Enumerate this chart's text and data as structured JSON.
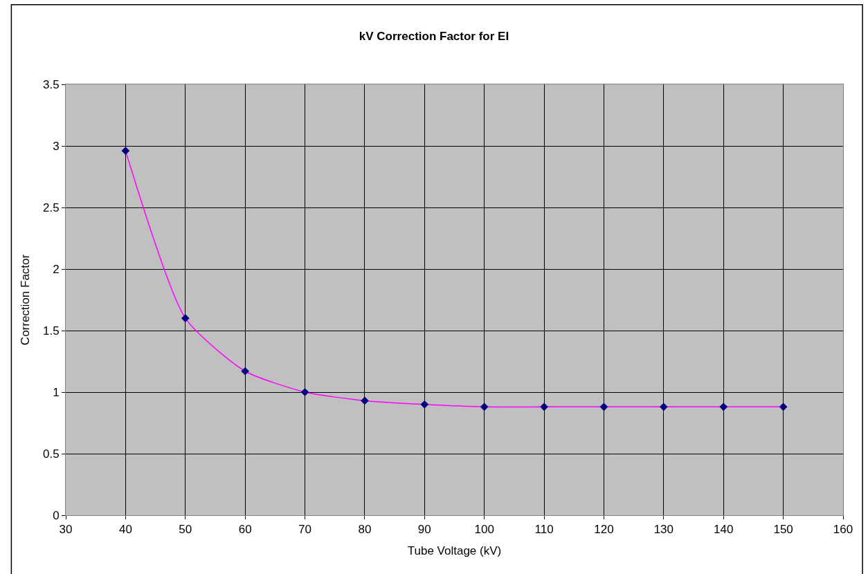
{
  "chart_data": {
    "type": "line",
    "title": "kV Correction Factor for EI",
    "xlabel": "Tube Voltage (kV)",
    "ylabel": "Correction Factor",
    "x": [
      40,
      50,
      60,
      70,
      80,
      90,
      100,
      110,
      120,
      130,
      140,
      150
    ],
    "series": [
      {
        "color": "#ff00ff",
        "values": [
          2.96,
          1.6,
          1.17,
          1.0,
          0.93,
          0.9,
          0.88,
          0.88,
          0.88,
          0.88,
          0.88,
          0.88
        ]
      }
    ],
    "marker": "diamond",
    "line_style": "solid",
    "grid": true,
    "xlim": [
      30,
      160
    ],
    "xticks": [
      30,
      40,
      50,
      60,
      70,
      80,
      90,
      100,
      110,
      120,
      130,
      140,
      150,
      160
    ],
    "ylim": [
      0,
      3.5
    ],
    "yticks": [
      0,
      0.5,
      1,
      1.5,
      2,
      2.5,
      3,
      3.5
    ]
  }
}
